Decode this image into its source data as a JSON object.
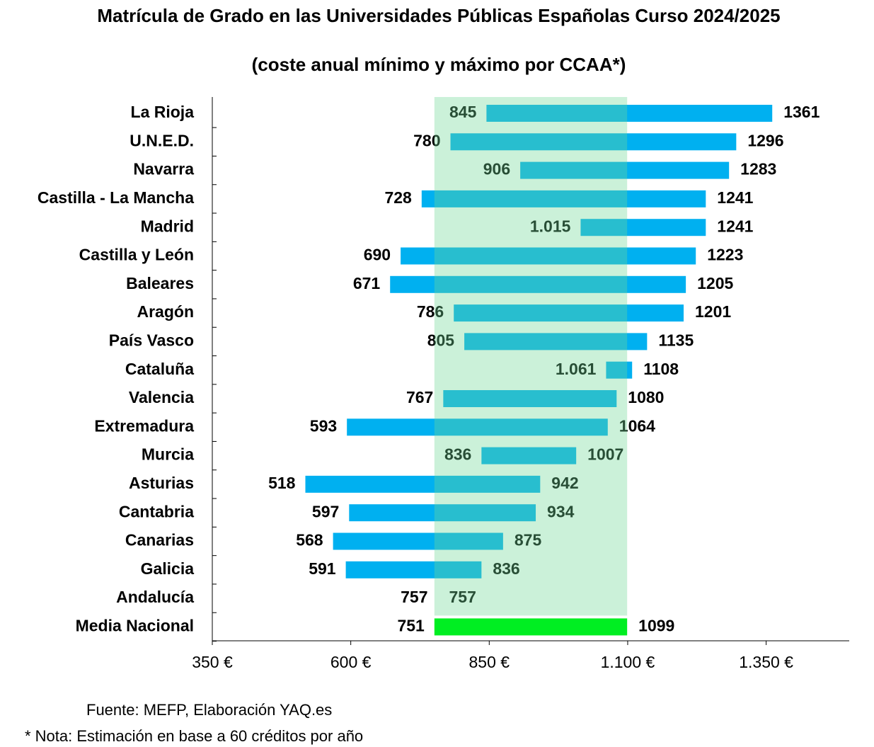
{
  "chart_data": {
    "type": "range-bar",
    "title": "Matrícula de Grado en las Universidades Públicas Españolas Curso 2024/2025",
    "subtitle": "(coste anual mínimo y máximo por CCAA*)",
    "categories": [
      "La Rioja",
      "U.N.E.D.",
      "Navarra",
      "Castilla - La Mancha",
      "Madrid",
      "Castilla y León",
      "Baleares",
      "Aragón",
      "País Vasco",
      "Cataluña",
      "Valencia",
      "Extremadura",
      "Murcia",
      "Asturias",
      "Cantabria",
      "Canarias",
      "Galicia",
      "Andalucía",
      "Media Nacional"
    ],
    "low": [
      845,
      780,
      906,
      728,
      1015,
      690,
      671,
      786,
      805,
      1061,
      767,
      593,
      836,
      518,
      597,
      568,
      591,
      757,
      751
    ],
    "low_labels": [
      "845",
      "780",
      "906",
      "728",
      "1.015",
      "690",
      "671",
      "786",
      "805",
      "1.061",
      "767",
      "593",
      "836",
      "518",
      "597",
      "568",
      "591",
      "757",
      "751"
    ],
    "high": [
      1361,
      1296,
      1283,
      1241,
      1241,
      1223,
      1205,
      1201,
      1135,
      1108,
      1080,
      1064,
      1007,
      942,
      934,
      875,
      836,
      757,
      1099
    ],
    "color": "#00b0f0",
    "highlight_color": "#00ee22",
    "band_color": "rgba(110,215,150,0.36)",
    "xlim": [
      350,
      1500
    ],
    "xticks": [
      {
        "value": 350,
        "label": "350 €"
      },
      {
        "value": 600,
        "label": "600 €"
      },
      {
        "value": 850,
        "label": "850 €"
      },
      {
        "value": 1100,
        "label": "1.100 €"
      },
      {
        "value": 1350,
        "label": "1.350 €"
      }
    ],
    "source": "Fuente: MEFP, Elaboración YAQ.es",
    "note": "* Nota: Estimación en base a 60 créditos por año"
  }
}
